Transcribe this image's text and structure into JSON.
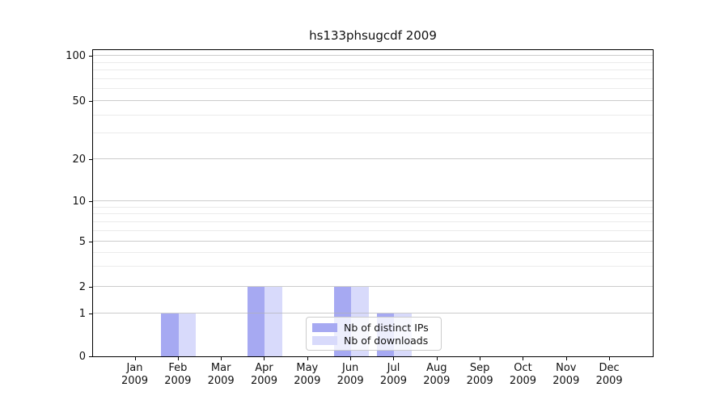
{
  "chart_data": {
    "type": "bar",
    "title": "hs133phsugcdf 2009",
    "categories": [
      "Jan 2009",
      "Feb 2009",
      "Mar 2009",
      "Apr 2009",
      "May 2009",
      "Jun 2009",
      "Jul 2009",
      "Aug 2009",
      "Sep 2009",
      "Oct 2009",
      "Nov 2009",
      "Dec 2009"
    ],
    "series": [
      {
        "name": "Nb of distinct IPs",
        "color": "#a6a9f2",
        "values": [
          0,
          1,
          0,
          2,
          0,
          2,
          1,
          0,
          0,
          0,
          0,
          0
        ]
      },
      {
        "name": "Nb of downloads",
        "color": "#d8dafb",
        "values": [
          0,
          1,
          0,
          2,
          0,
          2,
          1,
          0,
          0,
          0,
          0,
          0
        ]
      }
    ],
    "y_ticks": [
      0,
      1,
      2,
      5,
      10,
      20,
      50,
      100
    ],
    "y_minor_ticks": [
      3,
      4,
      6,
      7,
      8,
      9,
      30,
      40,
      60,
      70,
      80,
      90
    ],
    "y_scale": "symlog",
    "ylim": [
      0,
      110
    ],
    "xlabel": "",
    "ylabel": "",
    "grid": true,
    "legend_position": "lower center"
  },
  "colors": {
    "distinct_ips_bar": "#a6a9f2",
    "downloads_bar": "#d8dafb",
    "major_grid": "#b0b0b0",
    "minor_grid": "#d2d2d2",
    "axis": "#000000",
    "legend_border": "#cccccc"
  }
}
